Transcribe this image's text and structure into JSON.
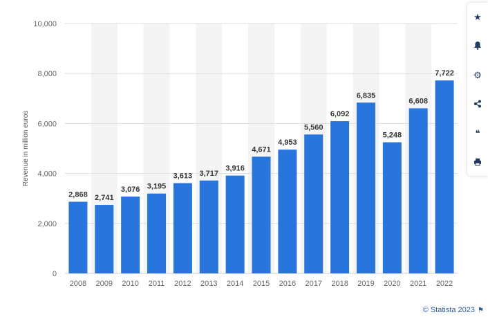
{
  "chart_data": {
    "type": "bar",
    "categories": [
      "2008",
      "2009",
      "2010",
      "2011",
      "2012",
      "2013",
      "2014",
      "2015",
      "2016",
      "2017",
      "2018",
      "2019",
      "2020",
      "2021",
      "2022"
    ],
    "values": [
      2868,
      2741,
      3076,
      3195,
      3613,
      3717,
      3916,
      4671,
      4953,
      5560,
      6092,
      6835,
      5248,
      6608,
      7722
    ],
    "value_labels": [
      "2,868",
      "2,741",
      "3,076",
      "3,195",
      "3,613",
      "3,717",
      "3,916",
      "4,671",
      "4,953",
      "5,560",
      "6,092",
      "6,835",
      "5,248",
      "6,608",
      "7,722"
    ],
    "ylabel": "Revenue in million euros",
    "ylim": [
      0,
      10000
    ],
    "yticks": [
      0,
      2000,
      4000,
      6000,
      8000,
      10000
    ],
    "ytick_labels": [
      "0",
      "2,000",
      "4,000",
      "6,000",
      "8,000",
      "10,000"
    ],
    "grid": true,
    "bar_color": "#2876dd",
    "band_color": "#f4f4f4"
  },
  "credit": "© Statista 2023",
  "toolbar": [
    {
      "icon": "star-icon",
      "glyph": "★"
    },
    {
      "icon": "bell-icon",
      "glyph": "🔔"
    },
    {
      "icon": "gear-icon",
      "glyph": "⚙"
    },
    {
      "icon": "share-icon",
      "glyph": "⋖"
    },
    {
      "icon": "quote-icon",
      "glyph": "❝"
    },
    {
      "icon": "print-icon",
      "glyph": "⎙"
    }
  ]
}
